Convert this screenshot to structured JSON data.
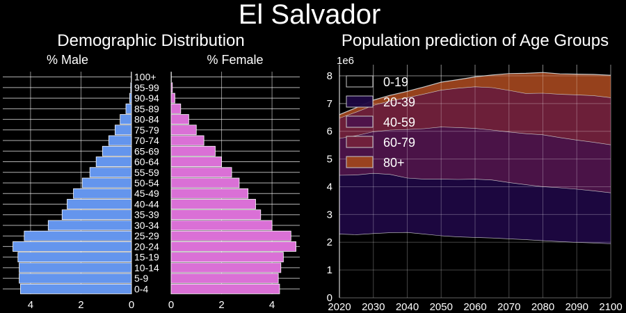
{
  "title": "El Salvador",
  "chart_data": [
    {
      "type": "bar",
      "orientation": "horizontal",
      "title": "Demographic Distribution",
      "male_label": "% Male",
      "female_label": "% Female",
      "categories": [
        "0-4",
        "5-9",
        "10-14",
        "15-19",
        "20-24",
        "25-29",
        "30-34",
        "35-39",
        "40-44",
        "45-49",
        "50-54",
        "55-59",
        "60-64",
        "65-69",
        "70-74",
        "75-79",
        "80-84",
        "85-89",
        "90-94",
        "95-99",
        "100+"
      ],
      "male": [
        4.4,
        4.45,
        4.45,
        4.5,
        4.7,
        4.25,
        3.3,
        2.75,
        2.55,
        2.3,
        1.95,
        1.65,
        1.4,
        1.15,
        0.9,
        0.65,
        0.45,
        0.22,
        0.07,
        0.03,
        0.01
      ],
      "female": [
        4.3,
        4.25,
        4.35,
        4.45,
        4.95,
        4.75,
        4.0,
        3.55,
        3.35,
        3.05,
        2.7,
        2.4,
        2.0,
        1.75,
        1.3,
        1.0,
        0.7,
        0.38,
        0.15,
        0.05,
        0.01
      ],
      "male_ticks": [
        4,
        2,
        0
      ],
      "female_ticks": [
        0,
        2,
        4
      ],
      "xlim": [
        0,
        5.1
      ],
      "colors": {
        "male": "#6495ed",
        "female": "#da70d6"
      }
    },
    {
      "type": "area",
      "stacked": true,
      "title": "Population prediction of Age Groups",
      "y_multiplier": "1e6",
      "x": [
        2020,
        2025,
        2030,
        2035,
        2040,
        2045,
        2050,
        2055,
        2060,
        2065,
        2070,
        2075,
        2080,
        2085,
        2090,
        2095,
        2100
      ],
      "xticks": [
        2020,
        2030,
        2040,
        2050,
        2060,
        2070,
        2080,
        2090,
        2100
      ],
      "yticks": [
        0,
        1,
        2,
        3,
        4,
        5,
        6,
        7,
        8
      ],
      "ylim": [
        0,
        8.4
      ],
      "legend_position": "top-left",
      "series": [
        {
          "name": "0-19",
          "color": "#000000",
          "values": [
            2.3,
            2.28,
            2.32,
            2.35,
            2.36,
            2.3,
            2.24,
            2.2,
            2.18,
            2.16,
            2.13,
            2.1,
            2.06,
            2.03,
            2.0,
            1.98,
            1.95
          ]
        },
        {
          "name": "20-39",
          "color": "#1e0742",
          "values": [
            2.12,
            2.15,
            2.17,
            2.1,
            1.96,
            1.98,
            2.04,
            2.07,
            2.1,
            2.09,
            2.03,
            1.98,
            1.95,
            1.94,
            1.92,
            1.88,
            1.84
          ]
        },
        {
          "name": "40-59",
          "color": "#4e144b",
          "values": [
            1.33,
            1.42,
            1.5,
            1.6,
            1.75,
            1.82,
            1.88,
            1.87,
            1.83,
            1.8,
            1.82,
            1.84,
            1.87,
            1.81,
            1.77,
            1.75,
            1.73
          ]
        },
        {
          "name": "60-79",
          "color": "#72213c",
          "values": [
            0.73,
            0.85,
            0.95,
            1.05,
            1.15,
            1.25,
            1.33,
            1.42,
            1.5,
            1.53,
            1.5,
            1.45,
            1.5,
            1.56,
            1.63,
            1.68,
            1.7
          ]
        },
        {
          "name": "80+",
          "color": "#9e441d",
          "values": [
            0.12,
            0.15,
            0.18,
            0.2,
            0.22,
            0.25,
            0.28,
            0.3,
            0.35,
            0.45,
            0.6,
            0.72,
            0.74,
            0.73,
            0.74,
            0.76,
            0.8
          ]
        }
      ]
    }
  ]
}
